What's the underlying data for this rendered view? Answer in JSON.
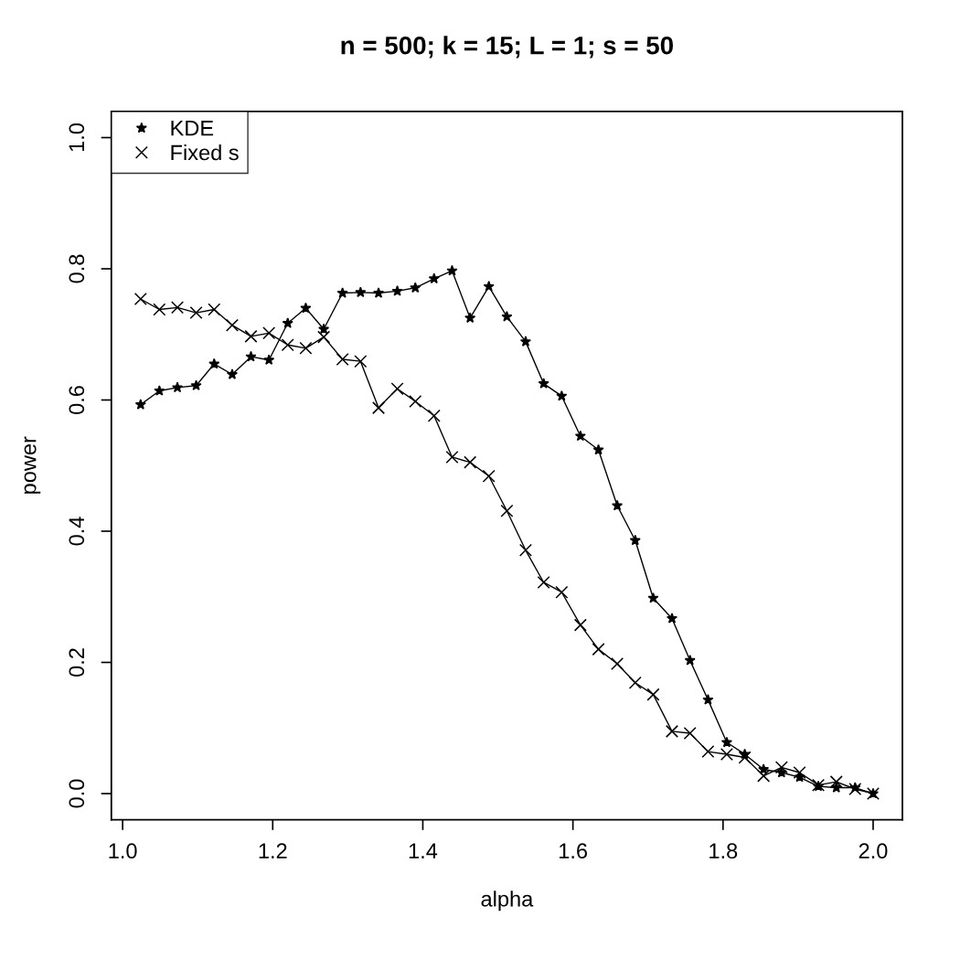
{
  "chart_data": {
    "type": "line",
    "title": "n = 500; k = 15; L = 1; s = 50",
    "xlabel": "alpha",
    "ylabel": "power",
    "x": [
      1.024,
      1.049,
      1.073,
      1.098,
      1.122,
      1.146,
      1.171,
      1.195,
      1.22,
      1.244,
      1.268,
      1.293,
      1.317,
      1.341,
      1.366,
      1.39,
      1.415,
      1.439,
      1.463,
      1.488,
      1.512,
      1.537,
      1.561,
      1.585,
      1.61,
      1.634,
      1.659,
      1.683,
      1.707,
      1.732,
      1.756,
      1.78,
      1.805,
      1.829,
      1.854,
      1.878,
      1.902,
      1.927,
      1.951,
      1.976,
      2.0
    ],
    "series": [
      {
        "name": "KDE",
        "color": "#000000",
        "marker": "star",
        "values": [
          0.593,
          0.614,
          0.619,
          0.622,
          0.655,
          0.639,
          0.666,
          0.661,
          0.717,
          0.74,
          0.708,
          0.763,
          0.764,
          0.763,
          0.766,
          0.771,
          0.785,
          0.797,
          0.725,
          0.773,
          0.727,
          0.689,
          0.625,
          0.606,
          0.545,
          0.524,
          0.439,
          0.386,
          0.298,
          0.267,
          0.203,
          0.143,
          0.078,
          0.06,
          0.037,
          0.032,
          0.025,
          0.011,
          0.009,
          0.009,
          0.0
        ]
      },
      {
        "name": "Fixed s",
        "color": "#000000",
        "marker": "cross",
        "values": [
          0.754,
          0.738,
          0.741,
          0.733,
          0.738,
          0.714,
          0.697,
          0.702,
          0.684,
          0.679,
          0.696,
          0.662,
          0.659,
          0.588,
          0.617,
          0.598,
          0.576,
          0.513,
          0.505,
          0.484,
          0.431,
          0.371,
          0.322,
          0.307,
          0.257,
          0.22,
          0.198,
          0.169,
          0.151,
          0.095,
          0.092,
          0.064,
          0.06,
          0.055,
          0.027,
          0.04,
          0.032,
          0.013,
          0.018,
          0.007,
          0.0
        ]
      }
    ],
    "xlim": [
      0.985,
      2.039
    ],
    "ylim": [
      -0.04,
      1.04
    ],
    "xticks": [
      {
        "value": 1.0,
        "label": "1.0"
      },
      1.2,
      1.4,
      1.6,
      1.8,
      {
        "value": 2.0,
        "label": "2.0"
      }
    ],
    "yticks": [
      {
        "value": 0.0,
        "label": "0.0"
      },
      0.2,
      0.4,
      0.6,
      0.8,
      {
        "value": 1.0,
        "label": "1.0"
      }
    ],
    "grid": false,
    "legend": "top left",
    "line_style": "solid"
  }
}
